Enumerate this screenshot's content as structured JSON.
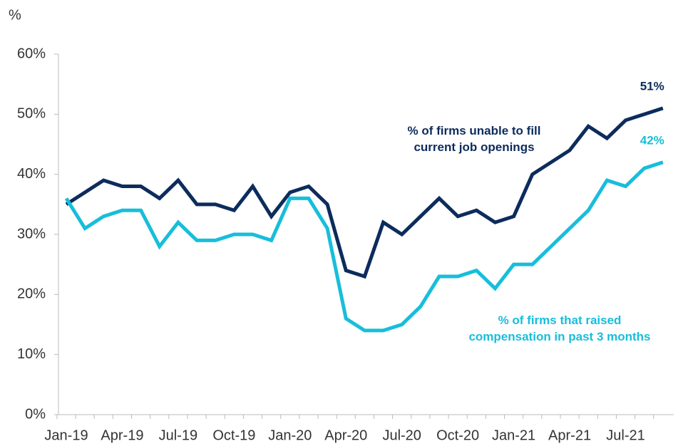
{
  "chart_data": {
    "type": "line",
    "y_unit": "%",
    "categories": [
      "Jan-19",
      null,
      null,
      "Apr-19",
      null,
      null,
      "Jul-19",
      null,
      null,
      "Oct-19",
      null,
      null,
      "Jan-20",
      null,
      null,
      "Apr-20",
      null,
      null,
      "Jul-20",
      null,
      null,
      "Oct-20",
      null,
      null,
      "Jan-21",
      null,
      null,
      "Apr-21",
      null,
      null,
      "Jul-21",
      null,
      null
    ],
    "series": [
      {
        "name": "% of firms unable to fill\ncurrent job openings",
        "color": "#0c2c5c",
        "values": [
          35,
          37,
          39,
          38,
          38,
          36,
          39,
          35,
          35,
          34,
          38,
          33,
          37,
          38,
          35,
          24,
          23,
          32,
          30,
          33,
          36,
          33,
          34,
          32,
          33,
          40,
          42,
          44,
          48,
          46,
          49,
          50,
          51
        ],
        "value_labels": [
          null,
          null,
          null,
          null,
          null,
          null,
          null,
          null,
          null,
          null,
          null,
          null,
          null,
          null,
          null,
          null,
          null,
          null,
          null,
          null,
          null,
          null,
          null,
          null,
          null,
          null,
          null,
          null,
          null,
          null,
          null,
          null,
          "51%"
        ]
      },
      {
        "name": "% of firms that raised\ncompensation in past 3 months",
        "color": "#17bedb",
        "values": [
          36,
          31,
          33,
          34,
          34,
          28,
          32,
          29,
          29,
          30,
          30,
          29,
          36,
          36,
          31,
          16,
          14,
          14,
          15,
          18,
          23,
          23,
          24,
          21,
          25,
          25,
          28,
          31,
          34,
          39,
          38,
          41,
          42
        ],
        "value_labels": [
          null,
          null,
          null,
          null,
          null,
          null,
          null,
          null,
          null,
          null,
          null,
          null,
          null,
          null,
          null,
          null,
          null,
          null,
          null,
          null,
          null,
          null,
          null,
          null,
          null,
          null,
          null,
          null,
          null,
          null,
          null,
          null,
          "42%"
        ]
      }
    ],
    "ylim": [
      0,
      60
    ],
    "yticks": [
      {
        "value": 0,
        "label": "0%"
      },
      {
        "value": 10,
        "label": "10%"
      },
      {
        "value": 20,
        "label": "20%"
      },
      {
        "value": 30,
        "label": "30%"
      },
      {
        "value": 40,
        "label": "40%"
      },
      {
        "value": 50,
        "label": "50%"
      },
      {
        "value": 60,
        "label": "60%"
      }
    ],
    "grid": false
  }
}
